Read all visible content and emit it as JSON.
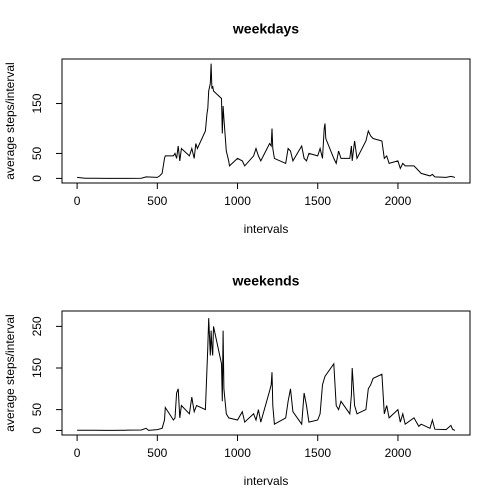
{
  "chart_data": [
    {
      "type": "line",
      "title": "weekdays",
      "xlabel": "intervals",
      "ylabel": "average steps/interval",
      "color": "#000000",
      "xlim": [
        -94.2,
        2449.2
      ],
      "ylim": [
        -9.2,
        239.2
      ],
      "xticks": [
        0,
        500,
        1000,
        1500,
        2000
      ],
      "yticks": [
        0,
        50,
        150
      ],
      "x": [
        0,
        50,
        100,
        200,
        300,
        400,
        430,
        500,
        515,
        530,
        545,
        550,
        600,
        610,
        620,
        630,
        640,
        650,
        700,
        715,
        730,
        740,
        750,
        800,
        810,
        815,
        820,
        830,
        835,
        840,
        845,
        850,
        900,
        905,
        910,
        915,
        930,
        945,
        950,
        1000,
        1030,
        1045,
        1100,
        1115,
        1130,
        1145,
        1200,
        1210,
        1215,
        1220,
        1230,
        1300,
        1315,
        1330,
        1345,
        1400,
        1415,
        1430,
        1445,
        1500,
        1515,
        1530,
        1540,
        1545,
        1550,
        1600,
        1615,
        1630,
        1645,
        1700,
        1710,
        1715,
        1730,
        1745,
        1800,
        1815,
        1830,
        1845,
        1900,
        1915,
        1930,
        1945,
        2000,
        2015,
        2030,
        2045,
        2100,
        2115,
        2130,
        2145,
        2200,
        2215,
        2230,
        2300,
        2330,
        2355
      ],
      "values": [
        2,
        0.5,
        0.4,
        0,
        0.1,
        0.5,
        3,
        2,
        5,
        10,
        40,
        45,
        45,
        50,
        40,
        65,
        35,
        60,
        45,
        60,
        40,
        70,
        60,
        95,
        130,
        140,
        175,
        190,
        230,
        180,
        185,
        175,
        160,
        90,
        145,
        120,
        55,
        35,
        25,
        40,
        35,
        25,
        45,
        60,
        45,
        35,
        70,
        65,
        100,
        60,
        40,
        30,
        60,
        55,
        35,
        65,
        40,
        35,
        50,
        45,
        60,
        40,
        100,
        110,
        80,
        40,
        30,
        55,
        40,
        40,
        65,
        35,
        75,
        40,
        75,
        95,
        85,
        80,
        75,
        40,
        45,
        30,
        35,
        20,
        30,
        25,
        25,
        20,
        15,
        10,
        5,
        8,
        3,
        2,
        4,
        2
      ]
    },
    {
      "type": "line",
      "title": "weekends",
      "xlabel": "intervals",
      "ylabel": "average steps/interval",
      "color": "#000000",
      "xlim": [
        -94.2,
        2449.2
      ],
      "ylim": [
        -11,
        287
      ],
      "xticks": [
        0,
        500,
        1000,
        1500,
        2000
      ],
      "yticks": [
        0,
        50,
        150,
        250
      ],
      "x": [
        0,
        100,
        200,
        300,
        400,
        430,
        445,
        500,
        530,
        545,
        550,
        600,
        610,
        620,
        630,
        640,
        650,
        700,
        715,
        730,
        745,
        800,
        815,
        820,
        830,
        835,
        840,
        845,
        850,
        900,
        905,
        910,
        915,
        930,
        945,
        1000,
        1030,
        1045,
        1100,
        1115,
        1130,
        1145,
        1200,
        1210,
        1215,
        1220,
        1230,
        1300,
        1315,
        1330,
        1345,
        1400,
        1415,
        1430,
        1445,
        1500,
        1515,
        1530,
        1545,
        1600,
        1615,
        1630,
        1645,
        1700,
        1710,
        1715,
        1730,
        1745,
        1800,
        1815,
        1830,
        1845,
        1900,
        1915,
        1930,
        1945,
        2000,
        2015,
        2030,
        2045,
        2100,
        2115,
        2130,
        2145,
        2200,
        2215,
        2230,
        2300,
        2330,
        2340,
        2355
      ],
      "values": [
        0.2,
        0.5,
        0,
        0.5,
        1,
        5,
        0,
        2,
        5,
        25,
        55,
        25,
        30,
        90,
        100,
        30,
        60,
        40,
        80,
        45,
        60,
        50,
        200,
        270,
        180,
        240,
        200,
        180,
        250,
        160,
        70,
        240,
        100,
        40,
        30,
        25,
        45,
        20,
        40,
        25,
        50,
        20,
        95,
        110,
        140,
        60,
        15,
        30,
        70,
        100,
        45,
        15,
        90,
        60,
        20,
        25,
        40,
        110,
        130,
        160,
        60,
        50,
        70,
        40,
        85,
        150,
        60,
        40,
        50,
        100,
        110,
        125,
        135,
        40,
        60,
        30,
        50,
        20,
        40,
        15,
        30,
        20,
        10,
        15,
        5,
        25,
        3,
        2,
        12,
        3,
        0
      ]
    }
  ]
}
